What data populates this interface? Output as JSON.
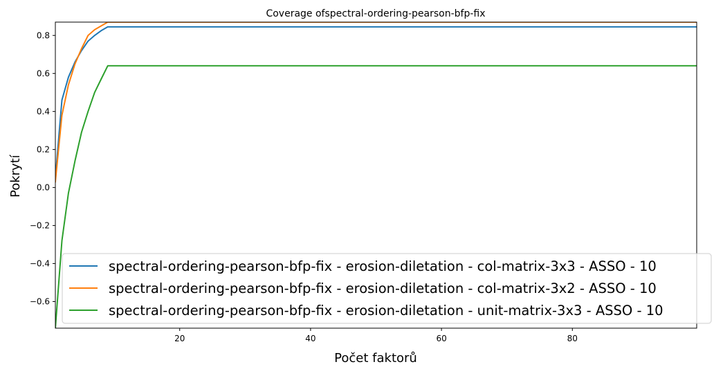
{
  "chart_data": {
    "type": "line",
    "title": "Coverage ofspectral-ordering-pearson-bfp-fix",
    "xlabel": "Počet faktorů",
    "ylabel": "Pokrytí",
    "xlim": [
      1,
      99
    ],
    "ylim": [
      -0.74,
      0.87
    ],
    "xticks": [
      20,
      40,
      60,
      80
    ],
    "xtick_labels": [
      "20",
      "40",
      "60",
      "80"
    ],
    "yticks": [
      -0.6,
      -0.4,
      -0.2,
      0.0,
      0.2,
      0.4,
      0.6,
      0.8
    ],
    "ytick_labels": [
      "−0.6",
      "−0.4",
      "−0.2",
      "0.0",
      "0.2",
      "0.4",
      "0.6",
      "0.8"
    ],
    "grid": false,
    "legend_position": "lower-right",
    "series": [
      {
        "name": "spectral-ordering-pearson-bfp-fix - erosion-diletation - col-matrix-3x3 - ASSO - 10",
        "color": "#1f77b4",
        "x": [
          1,
          2,
          3,
          4,
          5,
          6,
          7,
          8,
          9,
          99
        ],
        "y": [
          0.05,
          0.46,
          0.58,
          0.66,
          0.72,
          0.77,
          0.8,
          0.825,
          0.845,
          0.845
        ]
      },
      {
        "name": "spectral-ordering-pearson-bfp-fix - erosion-diletation - col-matrix-3x2 - ASSO - 10",
        "color": "#ff7f0e",
        "x": [
          1,
          2,
          3,
          4,
          5,
          6,
          7,
          8,
          9,
          99
        ],
        "y": [
          0.03,
          0.38,
          0.54,
          0.65,
          0.73,
          0.8,
          0.83,
          0.85,
          0.87,
          0.87
        ]
      },
      {
        "name": "spectral-ordering-pearson-bfp-fix - erosion-diletation - unit-matrix-3x3 - ASSO - 10",
        "color": "#2ca02c",
        "x": [
          1,
          2,
          3,
          4,
          5,
          6,
          7,
          8,
          9,
          99
        ],
        "y": [
          -0.74,
          -0.28,
          -0.03,
          0.14,
          0.29,
          0.4,
          0.5,
          0.57,
          0.64,
          0.64
        ]
      }
    ]
  }
}
